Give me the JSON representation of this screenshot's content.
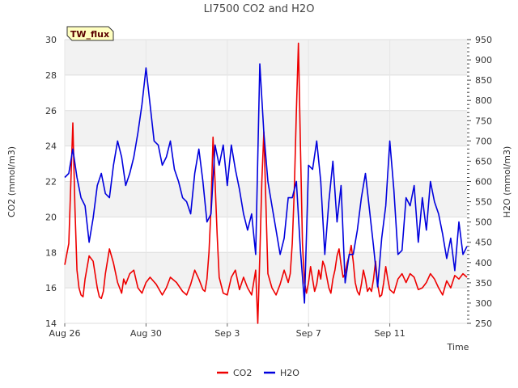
{
  "chart_data": {
    "type": "line",
    "title": "LI7500 CO2 and H2O",
    "badge": "TW_flux",
    "xlabel": "Time",
    "ylabel_left": "CO2 (mmol/m3)",
    "ylabel_right": "H2O (mmol/m3)",
    "xlim": [
      0,
      19.8
    ],
    "ylim_left": [
      14,
      30
    ],
    "ylim_right": [
      250,
      950
    ],
    "xticks": [
      {
        "label": "Aug 26",
        "value": 0
      },
      {
        "label": "Aug 30",
        "value": 4
      },
      {
        "label": "Sep 3",
        "value": 8
      },
      {
        "label": "Sep 7",
        "value": 12
      },
      {
        "label": "Sep 11",
        "value": 16
      }
    ],
    "yticks_left": [
      {
        "label": "14",
        "value": 14
      },
      {
        "label": "16",
        "value": 16
      },
      {
        "label": "18",
        "value": 18
      },
      {
        "label": "20",
        "value": 20
      },
      {
        "label": "22",
        "value": 22
      },
      {
        "label": "24",
        "value": 24
      },
      {
        "label": "26",
        "value": 26
      },
      {
        "label": "28",
        "value": 28
      },
      {
        "label": "30",
        "value": 30
      }
    ],
    "yticks_right": [
      {
        "label": "250",
        "value": 250
      },
      {
        "label": "300",
        "value": 300
      },
      {
        "label": "350",
        "value": 350
      },
      {
        "label": "400",
        "value": 400
      },
      {
        "label": "450",
        "value": 450
      },
      {
        "label": "500",
        "value": 500
      },
      {
        "label": "550",
        "value": 550
      },
      {
        "label": "600",
        "value": 600
      },
      {
        "label": "650",
        "value": 650
      },
      {
        "label": "700",
        "value": 700
      },
      {
        "label": "750",
        "value": 750
      },
      {
        "label": "800",
        "value": 800
      },
      {
        "label": "850",
        "value": 850
      },
      {
        "label": "900",
        "value": 900
      },
      {
        "label": "950",
        "value": 950
      }
    ],
    "series": [
      {
        "name": "CO2",
        "axis": "left",
        "color": "#ee0000",
        "x": [
          0.0,
          0.2,
          0.4,
          0.5,
          0.6,
          0.7,
          0.8,
          0.9,
          1.0,
          1.2,
          1.4,
          1.6,
          1.7,
          1.8,
          1.9,
          2.0,
          2.2,
          2.4,
          2.6,
          2.8,
          2.9,
          3.0,
          3.2,
          3.4,
          3.6,
          3.8,
          4.0,
          4.2,
          4.5,
          4.8,
          5.0,
          5.2,
          5.5,
          5.8,
          6.0,
          6.2,
          6.4,
          6.6,
          6.8,
          6.9,
          7.0,
          7.1,
          7.2,
          7.3,
          7.4,
          7.5,
          7.6,
          7.8,
          8.0,
          8.2,
          8.4,
          8.6,
          8.8,
          9.0,
          9.2,
          9.3,
          9.4,
          9.5,
          9.6,
          9.7,
          9.8,
          10.0,
          10.2,
          10.4,
          10.6,
          10.8,
          11.0,
          11.1,
          11.2,
          11.3,
          11.4,
          11.5,
          11.6,
          11.7,
          11.8,
          11.9,
          12.0,
          12.1,
          12.2,
          12.3,
          12.4,
          12.5,
          12.6,
          12.7,
          12.8,
          12.9,
          13.0,
          13.1,
          13.2,
          13.3,
          13.4,
          13.5,
          13.6,
          13.7,
          13.8,
          13.9,
          14.0,
          14.1,
          14.2,
          14.3,
          14.4,
          14.5,
          14.6,
          14.7,
          14.8,
          14.9,
          15.0,
          15.1,
          15.2,
          15.3,
          15.4,
          15.5,
          15.6,
          15.7,
          15.8,
          15.9,
          16.0,
          16.2,
          16.4,
          16.6,
          16.8,
          17.0,
          17.2,
          17.4,
          17.6,
          17.8,
          18.0,
          18.2,
          18.4,
          18.6,
          18.8,
          19.0,
          19.2,
          19.4,
          19.6,
          19.8
        ],
        "values": [
          17.3,
          18.5,
          25.3,
          20.5,
          17.0,
          16.0,
          15.6,
          15.5,
          16.5,
          17.8,
          17.5,
          16.0,
          15.5,
          15.4,
          15.8,
          16.8,
          18.2,
          17.4,
          16.3,
          15.7,
          16.5,
          16.2,
          16.8,
          17.0,
          16.0,
          15.7,
          16.3,
          16.6,
          16.2,
          15.6,
          16.0,
          16.6,
          16.3,
          15.8,
          15.6,
          16.2,
          17.0,
          16.5,
          15.9,
          15.8,
          16.5,
          18.0,
          20.5,
          24.5,
          22.0,
          19.0,
          16.6,
          15.7,
          15.6,
          16.6,
          17.0,
          15.9,
          16.6,
          16.0,
          15.6,
          16.3,
          17.0,
          14.0,
          17.8,
          22.0,
          24.8,
          16.8,
          16.0,
          15.6,
          16.2,
          17.0,
          16.3,
          16.8,
          18.5,
          21.5,
          26.0,
          29.8,
          24.0,
          18.5,
          16.3,
          15.7,
          16.3,
          17.2,
          16.5,
          15.8,
          16.2,
          17.0,
          16.5,
          17.5,
          17.2,
          16.6,
          16.0,
          15.7,
          16.5,
          17.0,
          17.8,
          18.2,
          17.3,
          16.6,
          16.8,
          17.4,
          17.8,
          18.4,
          17.5,
          16.3,
          15.8,
          15.6,
          16.2,
          17.0,
          16.5,
          15.8,
          16.0,
          15.8,
          16.5,
          17.5,
          16.2,
          15.5,
          15.6,
          16.3,
          17.2,
          16.5,
          15.9,
          15.7,
          16.5,
          16.8,
          16.3,
          16.8,
          16.6,
          15.9,
          16.0,
          16.3,
          16.8,
          16.5,
          16.0,
          15.6,
          16.4,
          16.0,
          16.7,
          16.5,
          16.8,
          16.6
        ]
      },
      {
        "name": "H2O",
        "axis": "right",
        "color": "#0000dd",
        "x": [
          0.0,
          0.2,
          0.4,
          0.6,
          0.8,
          1.0,
          1.2,
          1.4,
          1.6,
          1.8,
          2.0,
          2.2,
          2.4,
          2.6,
          2.8,
          3.0,
          3.2,
          3.4,
          3.6,
          3.8,
          4.0,
          4.2,
          4.4,
          4.6,
          4.8,
          5.0,
          5.2,
          5.4,
          5.6,
          5.8,
          6.0,
          6.2,
          6.4,
          6.6,
          6.8,
          7.0,
          7.2,
          7.4,
          7.6,
          7.8,
          8.0,
          8.2,
          8.4,
          8.6,
          8.8,
          9.0,
          9.2,
          9.4,
          9.6,
          9.8,
          10.0,
          10.2,
          10.4,
          10.6,
          10.8,
          11.0,
          11.2,
          11.4,
          11.6,
          11.8,
          12.0,
          12.2,
          12.4,
          12.6,
          12.8,
          13.0,
          13.2,
          13.4,
          13.6,
          13.8,
          14.0,
          14.2,
          14.4,
          14.6,
          14.8,
          15.0,
          15.2,
          15.4,
          15.6,
          15.8,
          16.0,
          16.2,
          16.4,
          16.6,
          16.8,
          17.0,
          17.2,
          17.4,
          17.6,
          17.8,
          18.0,
          18.2,
          18.4,
          18.6,
          18.8,
          19.0,
          19.2,
          19.4,
          19.6,
          19.8
        ],
        "values": [
          610,
          620,
          680,
          610,
          560,
          540,
          450,
          510,
          590,
          620,
          570,
          560,
          640,
          700,
          660,
          590,
          620,
          660,
          720,
          790,
          880,
          790,
          700,
          690,
          640,
          660,
          700,
          630,
          600,
          560,
          550,
          520,
          620,
          680,
          600,
          500,
          520,
          690,
          640,
          690,
          590,
          690,
          630,
          580,
          520,
          480,
          520,
          420,
          890,
          720,
          600,
          540,
          480,
          420,
          460,
          560,
          560,
          600,
          430,
          300,
          640,
          630,
          700,
          600,
          420,
          550,
          650,
          500,
          590,
          350,
          420,
          420,
          480,
          560,
          620,
          530,
          440,
          340,
          460,
          540,
          700,
          580,
          420,
          430,
          560,
          540,
          590,
          450,
          560,
          480,
          600,
          550,
          520,
          470,
          410,
          460,
          380,
          500,
          420,
          440
        ]
      }
    ]
  }
}
